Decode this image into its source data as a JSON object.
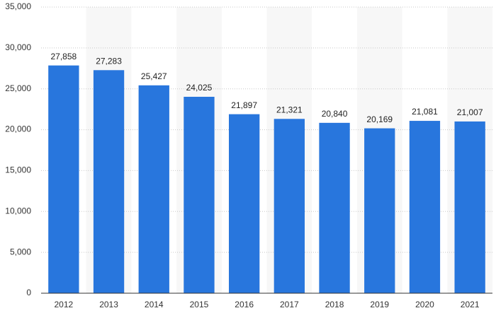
{
  "chart_data": {
    "type": "bar",
    "categories": [
      "2012",
      "2013",
      "2014",
      "2015",
      "2016",
      "2017",
      "2018",
      "2019",
      "2020",
      "2021"
    ],
    "values": [
      27858,
      27283,
      25427,
      24025,
      21897,
      21321,
      20840,
      20169,
      21081,
      21007
    ],
    "value_labels": [
      "27,858",
      "27,283",
      "25,427",
      "24,025",
      "21,897",
      "21,321",
      "20,840",
      "20,169",
      "21,081",
      "21,007"
    ],
    "color": "#2876dd",
    "ylim": [
      0,
      35000
    ],
    "yticks": [
      0,
      {
        "value": 5000,
        "label": "5,000"
      },
      {
        "value": 10000,
        "label": "10,000"
      },
      {
        "value": 15000,
        "label": "15,000"
      },
      {
        "value": 20000,
        "label": "20,000"
      },
      {
        "value": 25000,
        "label": "25,000"
      },
      {
        "value": 30000,
        "label": "30,000"
      },
      {
        "value": 35000,
        "label": "35,000"
      }
    ],
    "grid": true
  }
}
